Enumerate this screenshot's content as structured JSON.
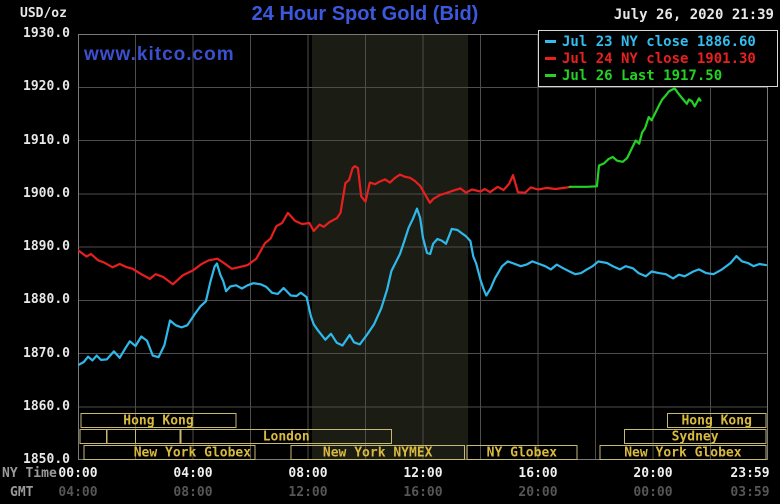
{
  "header": {
    "unit_label": "USD/oz",
    "title": "24 Hour Spot Gold (Bid)",
    "datetime": "July 26, 2020 21:39",
    "watermark": "www.kitco.com"
  },
  "legend": {
    "items": [
      {
        "id": "jul23",
        "label": "Jul 23 NY close 1886.60",
        "color": "#33bdef"
      },
      {
        "id": "jul24",
        "label": "Jul 24 NY close 1901.30",
        "color": "#e82020"
      },
      {
        "id": "jul26",
        "label": "Jul 26 Last 1917.50",
        "color": "#23d223"
      }
    ]
  },
  "axes": {
    "x_label_ny": "NY Time",
    "x_label_gmt": "GMT"
  },
  "colors": {
    "background": "#000000",
    "band": "#1b1d15",
    "grid": "#4d4d4d",
    "frame": "#7a7a7a",
    "session_border": "#c6b972",
    "session_label": "#d9ba3e"
  },
  "sessions": {
    "rows": [
      [
        {
          "start": 0.1,
          "end": 5.5,
          "label": "Hong Kong"
        },
        {
          "start": 20.5,
          "end": 23.93,
          "label": "Hong Kong"
        }
      ],
      [
        {
          "start": 0.07,
          "end": 1.0,
          "label": ""
        },
        {
          "start": 1.0,
          "end": 2.0,
          "label": ""
        },
        {
          "start": 2.0,
          "end": 3.55,
          "label": ""
        },
        {
          "start": 3.58,
          "end": 10.9,
          "label": "London"
        },
        {
          "start": 19.0,
          "end": 23.93,
          "label": "Sydney"
        }
      ],
      [
        {
          "start": 0.21,
          "end": 6.16,
          "label": "New York Globex",
          "label_align": "end"
        },
        {
          "start": 7.4,
          "end": 13.45,
          "label": "New York NYMEX"
        },
        {
          "start": 13.53,
          "end": 17.35,
          "label": "NY Globex"
        },
        {
          "start": 18.15,
          "end": 23.93,
          "label": "New York Globex"
        }
      ]
    ]
  },
  "chart_data": {
    "type": "line",
    "title": "24 Hour Spot Gold (Bid)",
    "xlabel": "NY Time",
    "ylabel": "USD/oz",
    "grid": true,
    "legend_position": "top-right",
    "x_axis": {
      "range_hours": [
        0,
        24
      ],
      "gridline_interval_hours": 2,
      "ticks_ny": [
        {
          "hour": 0,
          "label": "00:00"
        },
        {
          "hour": 4,
          "label": "04:00"
        },
        {
          "hour": 8,
          "label": "08:00"
        },
        {
          "hour": 12,
          "label": "12:00"
        },
        {
          "hour": 16,
          "label": "16:00"
        },
        {
          "hour": 20,
          "label": "20:00"
        },
        {
          "hour": 23.983,
          "label": "23:59"
        }
      ],
      "ticks_gmt": [
        {
          "hour": 0,
          "label": "04:00"
        },
        {
          "hour": 4,
          "label": "08:00"
        },
        {
          "hour": 8,
          "label": "12:00"
        },
        {
          "hour": 12,
          "label": "16:00"
        },
        {
          "hour": 16,
          "label": "20:00"
        },
        {
          "hour": 20,
          "label": "00:00"
        },
        {
          "hour": 23.983,
          "label": "03:59"
        }
      ]
    },
    "y_axis": {
      "range": [
        1850,
        1930
      ],
      "tick_interval": 10,
      "ticks": [
        {
          "value": 1930,
          "label": "1930.0"
        },
        {
          "value": 1920,
          "label": "1920.0"
        },
        {
          "value": 1910,
          "label": "1910.0"
        },
        {
          "value": 1900,
          "label": "1900.0"
        },
        {
          "value": 1890,
          "label": "1890.0"
        },
        {
          "value": 1880,
          "label": "1880.0"
        },
        {
          "value": 1870,
          "label": "1870.0"
        },
        {
          "value": 1860,
          "label": "1860.0"
        },
        {
          "value": 1850,
          "label": "1850.0"
        }
      ]
    },
    "highlight_band_hours": [
      8.14,
      13.57
    ],
    "series": [
      {
        "id": "jul23",
        "name": "Jul 23",
        "close_label": "NY close 1886.60",
        "color": "#2fb9ea",
        "points": [
          [
            0,
            1867.8
          ],
          [
            0.2,
            1868.4
          ],
          [
            0.35,
            1869.4
          ],
          [
            0.5,
            1868.7
          ],
          [
            0.65,
            1869.6
          ],
          [
            0.8,
            1868.8
          ],
          [
            1.0,
            1868.9
          ],
          [
            1.25,
            1870.4
          ],
          [
            1.45,
            1869.2
          ],
          [
            1.65,
            1871.0
          ],
          [
            1.8,
            1872.3
          ],
          [
            2.0,
            1871.4
          ],
          [
            2.2,
            1873.2
          ],
          [
            2.4,
            1872.4
          ],
          [
            2.6,
            1869.6
          ],
          [
            2.8,
            1869.3
          ],
          [
            3.0,
            1871.5
          ],
          [
            3.2,
            1876.2
          ],
          [
            3.4,
            1875.3
          ],
          [
            3.6,
            1874.9
          ],
          [
            3.8,
            1875.3
          ],
          [
            4.05,
            1877.3
          ],
          [
            4.25,
            1878.8
          ],
          [
            4.45,
            1879.8
          ],
          [
            4.6,
            1883.4
          ],
          [
            4.75,
            1886.3
          ],
          [
            4.83,
            1886.9
          ],
          [
            4.95,
            1884.8
          ],
          [
            5.05,
            1883.6
          ],
          [
            5.15,
            1881.7
          ],
          [
            5.3,
            1882.6
          ],
          [
            5.5,
            1882.8
          ],
          [
            5.7,
            1882.2
          ],
          [
            5.9,
            1882.8
          ],
          [
            6.1,
            1883.2
          ],
          [
            6.35,
            1883.0
          ],
          [
            6.55,
            1882.5
          ],
          [
            6.75,
            1881.4
          ],
          [
            6.95,
            1881.2
          ],
          [
            7.15,
            1882.3
          ],
          [
            7.4,
            1880.9
          ],
          [
            7.6,
            1880.8
          ],
          [
            7.75,
            1881.4
          ],
          [
            7.95,
            1880.6
          ],
          [
            8.1,
            1877.0
          ],
          [
            8.2,
            1875.5
          ],
          [
            8.35,
            1874.3
          ],
          [
            8.6,
            1872.6
          ],
          [
            8.8,
            1873.7
          ],
          [
            9.0,
            1872.0
          ],
          [
            9.2,
            1871.5
          ],
          [
            9.45,
            1873.5
          ],
          [
            9.6,
            1872.1
          ],
          [
            9.8,
            1871.7
          ],
          [
            10.05,
            1873.5
          ],
          [
            10.3,
            1875.5
          ],
          [
            10.55,
            1878.5
          ],
          [
            10.75,
            1882.0
          ],
          [
            10.9,
            1885.5
          ],
          [
            11.2,
            1888.7
          ],
          [
            11.35,
            1891.1
          ],
          [
            11.5,
            1893.6
          ],
          [
            11.65,
            1895.3
          ],
          [
            11.79,
            1897.2
          ],
          [
            11.9,
            1895.5
          ],
          [
            12.0,
            1891.7
          ],
          [
            12.14,
            1888.9
          ],
          [
            12.25,
            1888.7
          ],
          [
            12.35,
            1890.6
          ],
          [
            12.5,
            1891.5
          ],
          [
            12.65,
            1891.2
          ],
          [
            12.8,
            1890.6
          ],
          [
            13.0,
            1893.4
          ],
          [
            13.2,
            1893.2
          ],
          [
            13.35,
            1892.6
          ],
          [
            13.5,
            1892.0
          ],
          [
            13.65,
            1891.1
          ],
          [
            13.75,
            1888.2
          ],
          [
            13.85,
            1886.9
          ],
          [
            14.0,
            1883.8
          ],
          [
            14.1,
            1882.2
          ],
          [
            14.2,
            1880.9
          ],
          [
            14.35,
            1882.2
          ],
          [
            14.5,
            1884.1
          ],
          [
            14.75,
            1886.4
          ],
          [
            14.95,
            1887.3
          ],
          [
            15.15,
            1886.9
          ],
          [
            15.4,
            1886.4
          ],
          [
            15.6,
            1886.7
          ],
          [
            15.8,
            1887.3
          ],
          [
            16.0,
            1886.9
          ],
          [
            16.25,
            1886.4
          ],
          [
            16.45,
            1885.8
          ],
          [
            16.65,
            1886.7
          ],
          [
            16.85,
            1886.1
          ],
          [
            17.1,
            1885.4
          ],
          [
            17.3,
            1884.9
          ],
          [
            17.5,
            1885.1
          ],
          [
            17.7,
            1885.8
          ],
          [
            17.9,
            1886.4
          ],
          [
            18.1,
            1887.3
          ],
          [
            18.4,
            1887.0
          ],
          [
            18.6,
            1886.4
          ],
          [
            18.85,
            1885.8
          ],
          [
            19.05,
            1886.4
          ],
          [
            19.3,
            1886.0
          ],
          [
            19.5,
            1885.1
          ],
          [
            19.75,
            1884.5
          ],
          [
            19.95,
            1885.4
          ],
          [
            20.2,
            1885.1
          ],
          [
            20.45,
            1884.9
          ],
          [
            20.7,
            1884.1
          ],
          [
            20.9,
            1884.8
          ],
          [
            21.1,
            1884.5
          ],
          [
            21.4,
            1885.4
          ],
          [
            21.6,
            1885.8
          ],
          [
            21.85,
            1885.1
          ],
          [
            22.1,
            1884.9
          ],
          [
            22.4,
            1885.8
          ],
          [
            22.7,
            1887.0
          ],
          [
            22.9,
            1888.3
          ],
          [
            23.1,
            1887.3
          ],
          [
            23.3,
            1887.0
          ],
          [
            23.5,
            1886.4
          ],
          [
            23.7,
            1886.8
          ],
          [
            23.93,
            1886.6
          ]
        ]
      },
      {
        "id": "jul24",
        "name": "Jul 24",
        "close_label": "NY close 1901.30",
        "color": "#e71f1f",
        "points": [
          [
            0,
            1889.4
          ],
          [
            0.3,
            1888.2
          ],
          [
            0.45,
            1888.7
          ],
          [
            0.7,
            1887.5
          ],
          [
            0.9,
            1887.1
          ],
          [
            1.2,
            1886.2
          ],
          [
            1.45,
            1886.8
          ],
          [
            1.7,
            1886.2
          ],
          [
            1.9,
            1885.9
          ],
          [
            2.2,
            1884.9
          ],
          [
            2.5,
            1884.0
          ],
          [
            2.7,
            1884.9
          ],
          [
            2.95,
            1884.4
          ],
          [
            3.3,
            1883.0
          ],
          [
            3.65,
            1884.7
          ],
          [
            4.0,
            1885.6
          ],
          [
            4.3,
            1886.8
          ],
          [
            4.55,
            1887.5
          ],
          [
            4.85,
            1887.8
          ],
          [
            5.1,
            1886.9
          ],
          [
            5.35,
            1885.9
          ],
          [
            5.6,
            1886.2
          ],
          [
            5.9,
            1886.6
          ],
          [
            6.2,
            1887.8
          ],
          [
            6.5,
            1890.7
          ],
          [
            6.7,
            1891.6
          ],
          [
            6.9,
            1893.9
          ],
          [
            7.1,
            1894.5
          ],
          [
            7.3,
            1896.4
          ],
          [
            7.55,
            1894.9
          ],
          [
            7.8,
            1894.3
          ],
          [
            8.05,
            1894.5
          ],
          [
            8.2,
            1893.0
          ],
          [
            8.4,
            1894.2
          ],
          [
            8.55,
            1893.8
          ],
          [
            8.75,
            1894.7
          ],
          [
            9.0,
            1895.4
          ],
          [
            9.13,
            1896.4
          ],
          [
            9.3,
            1902.0
          ],
          [
            9.43,
            1902.6
          ],
          [
            9.55,
            1904.8
          ],
          [
            9.63,
            1905.2
          ],
          [
            9.74,
            1904.8
          ],
          [
            9.85,
            1899.5
          ],
          [
            10.0,
            1898.5
          ],
          [
            10.15,
            1902.1
          ],
          [
            10.33,
            1901.8
          ],
          [
            10.5,
            1902.3
          ],
          [
            10.68,
            1902.7
          ],
          [
            10.85,
            1902.1
          ],
          [
            11.03,
            1903.0
          ],
          [
            11.2,
            1903.6
          ],
          [
            11.37,
            1903.2
          ],
          [
            11.55,
            1903.0
          ],
          [
            11.72,
            1902.4
          ],
          [
            11.9,
            1901.5
          ],
          [
            12.07,
            1899.9
          ],
          [
            12.24,
            1898.3
          ],
          [
            12.35,
            1899.0
          ],
          [
            12.6,
            1899.8
          ],
          [
            12.8,
            1900.1
          ],
          [
            13.0,
            1900.5
          ],
          [
            13.3,
            1901.0
          ],
          [
            13.5,
            1900.2
          ],
          [
            13.7,
            1900.8
          ],
          [
            14.0,
            1900.4
          ],
          [
            14.15,
            1900.9
          ],
          [
            14.33,
            1900.3
          ],
          [
            14.6,
            1901.3
          ],
          [
            14.8,
            1900.7
          ],
          [
            15.0,
            1901.9
          ],
          [
            15.13,
            1903.5
          ],
          [
            15.3,
            1900.3
          ],
          [
            15.55,
            1900.2
          ],
          [
            15.75,
            1901.2
          ],
          [
            16.0,
            1900.8
          ],
          [
            16.3,
            1901.1
          ],
          [
            16.6,
            1900.9
          ],
          [
            16.9,
            1901.1
          ],
          [
            17.15,
            1901.3
          ]
        ]
      },
      {
        "id": "jul26",
        "name": "Jul 26",
        "close_label": "Last 1917.50",
        "color": "#23d223",
        "points": [
          [
            17.1,
            1901.3
          ],
          [
            17.7,
            1901.3
          ],
          [
            18.05,
            1901.4
          ],
          [
            18.12,
            1905.3
          ],
          [
            18.3,
            1905.7
          ],
          [
            18.45,
            1906.5
          ],
          [
            18.6,
            1906.9
          ],
          [
            18.75,
            1906.2
          ],
          [
            18.95,
            1906.0
          ],
          [
            19.1,
            1906.7
          ],
          [
            19.27,
            1908.6
          ],
          [
            19.4,
            1910.0
          ],
          [
            19.52,
            1909.4
          ],
          [
            19.62,
            1911.5
          ],
          [
            19.72,
            1912.3
          ],
          [
            19.85,
            1914.4
          ],
          [
            19.95,
            1913.8
          ],
          [
            20.1,
            1915.4
          ],
          [
            20.22,
            1916.7
          ],
          [
            20.32,
            1917.7
          ],
          [
            20.42,
            1918.3
          ],
          [
            20.55,
            1919.2
          ],
          [
            20.75,
            1919.8
          ],
          [
            20.9,
            1918.7
          ],
          [
            21.05,
            1917.7
          ],
          [
            21.18,
            1916.9
          ],
          [
            21.25,
            1917.7
          ],
          [
            21.35,
            1917.4
          ],
          [
            21.45,
            1916.4
          ],
          [
            21.6,
            1917.9
          ],
          [
            21.65,
            1917.5
          ]
        ]
      }
    ]
  }
}
